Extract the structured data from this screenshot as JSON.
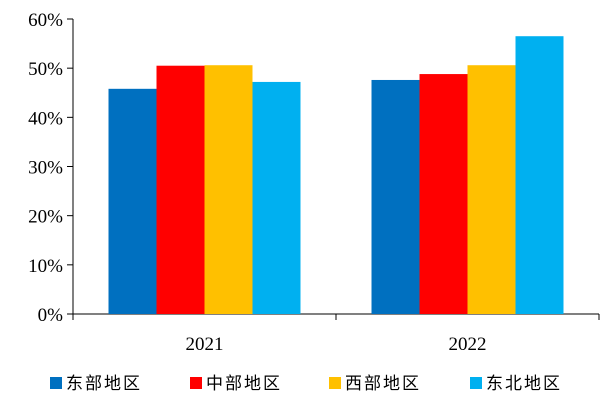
{
  "chart_data": {
    "type": "bar",
    "categories": [
      "2021",
      "2022"
    ],
    "series": [
      {
        "name": "东部地区",
        "color": "#0070C0",
        "values": [
          45.8,
          47.6
        ]
      },
      {
        "name": "中部地区",
        "color": "#FF0000",
        "values": [
          50.5,
          48.8
        ]
      },
      {
        "name": "西部地区",
        "color": "#FFC000",
        "values": [
          50.6,
          50.6
        ]
      },
      {
        "name": "东北地区",
        "color": "#00B0F0",
        "values": [
          47.2,
          56.5
        ]
      }
    ],
    "y_ticks": [
      "0%",
      "10%",
      "20%",
      "30%",
      "40%",
      "50%",
      "60%"
    ],
    "ylim": [
      0,
      60
    ],
    "y_unit": "%",
    "legend_position": "bottom",
    "grid": false
  }
}
